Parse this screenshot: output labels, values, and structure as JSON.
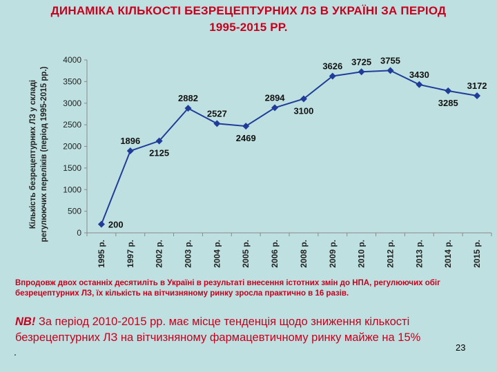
{
  "slide": {
    "title_line1": "ДИНАМІКА КІЛЬКОСТІ БЕЗРЕЦЕПТУРНИХ ЛЗ В УКРАЇНІ ЗА ПЕРІОД",
    "title_line2": "1995-2015 РР.",
    "note": "Впродовж двох останніх десятиліть в Україні в результаті внесення істотних змін до НПА, регулюючих обіг безрецептурних ЛЗ, їх кількість на вітчизняному ринку зросла практично в 16 разів.",
    "nb_mark": "NB!",
    "nb_text": " За період 2010-2015 рр. має місце тенденція щодо зниження кількості безрецептурних ЛЗ на вітчизняному фармацевтичному ринку майже на 15%",
    "dot": ".",
    "page_number": "23"
  },
  "chart_data": {
    "type": "line",
    "categories": [
      "1995 р.",
      "1997 р.",
      "2002 р.",
      "2003 р.",
      "2004 р.",
      "2005 р.",
      "2006 р.",
      "2008 р.",
      "2009 р.",
      "2010 р.",
      "2012 р.",
      "2013 р.",
      "2014 р.",
      "2015 р."
    ],
    "values": [
      200,
      1896,
      2125,
      2882,
      2527,
      2469,
      2894,
      3100,
      3626,
      3725,
      3755,
      3430,
      3285,
      3172
    ],
    "label_positions": [
      "right",
      "above",
      "below",
      "above",
      "above",
      "below",
      "above",
      "below",
      "above",
      "above",
      "above",
      "above",
      "below",
      "above"
    ],
    "ylabel_line1": "Кількість безрецептурних ЛЗ у складі",
    "ylabel_line2": "регулюючих переліків (період 1995-2015 рр.)",
    "ylim": [
      0,
      4000
    ],
    "yticks": [
      0,
      500,
      1000,
      1500,
      2000,
      2500,
      3000,
      3500,
      4000
    ],
    "grid": false,
    "legend": "none",
    "line_color": "#1f3c99",
    "marker_color": "#1f3c99"
  }
}
